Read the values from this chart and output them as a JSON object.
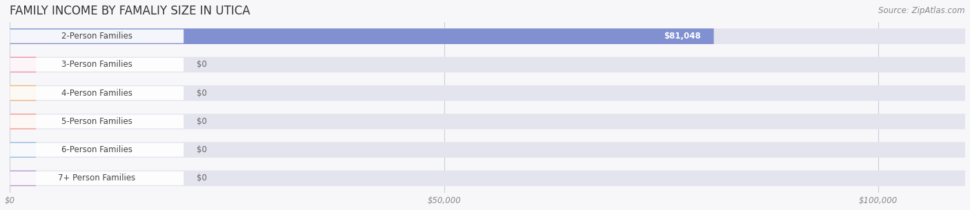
{
  "title": "FAMILY INCOME BY FAMALIY SIZE IN UTICA",
  "source": "Source: ZipAtlas.com",
  "categories": [
    "2-Person Families",
    "3-Person Families",
    "4-Person Families",
    "5-Person Families",
    "6-Person Families",
    "7+ Person Families"
  ],
  "values": [
    81048,
    0,
    0,
    0,
    0,
    0
  ],
  "bar_colors": [
    "#8090d0",
    "#f090a8",
    "#f0b878",
    "#f09888",
    "#98b8e0",
    "#b898cc"
  ],
  "bar_labels": [
    "$81,048",
    "$0",
    "$0",
    "$0",
    "$0",
    "$0"
  ],
  "xlim": [
    0,
    110000
  ],
  "xticks": [
    0,
    50000,
    100000
  ],
  "xticklabels": [
    "$0",
    "$50,000",
    "$100,000"
  ],
  "background_color": "#f7f7fa",
  "bar_bg_color": "#e4e4ee",
  "title_fontsize": 12,
  "label_fontsize": 8.5,
  "tick_fontsize": 8.5,
  "source_fontsize": 8.5,
  "fig_width": 14.06,
  "fig_height": 3.05,
  "dpi": 100
}
